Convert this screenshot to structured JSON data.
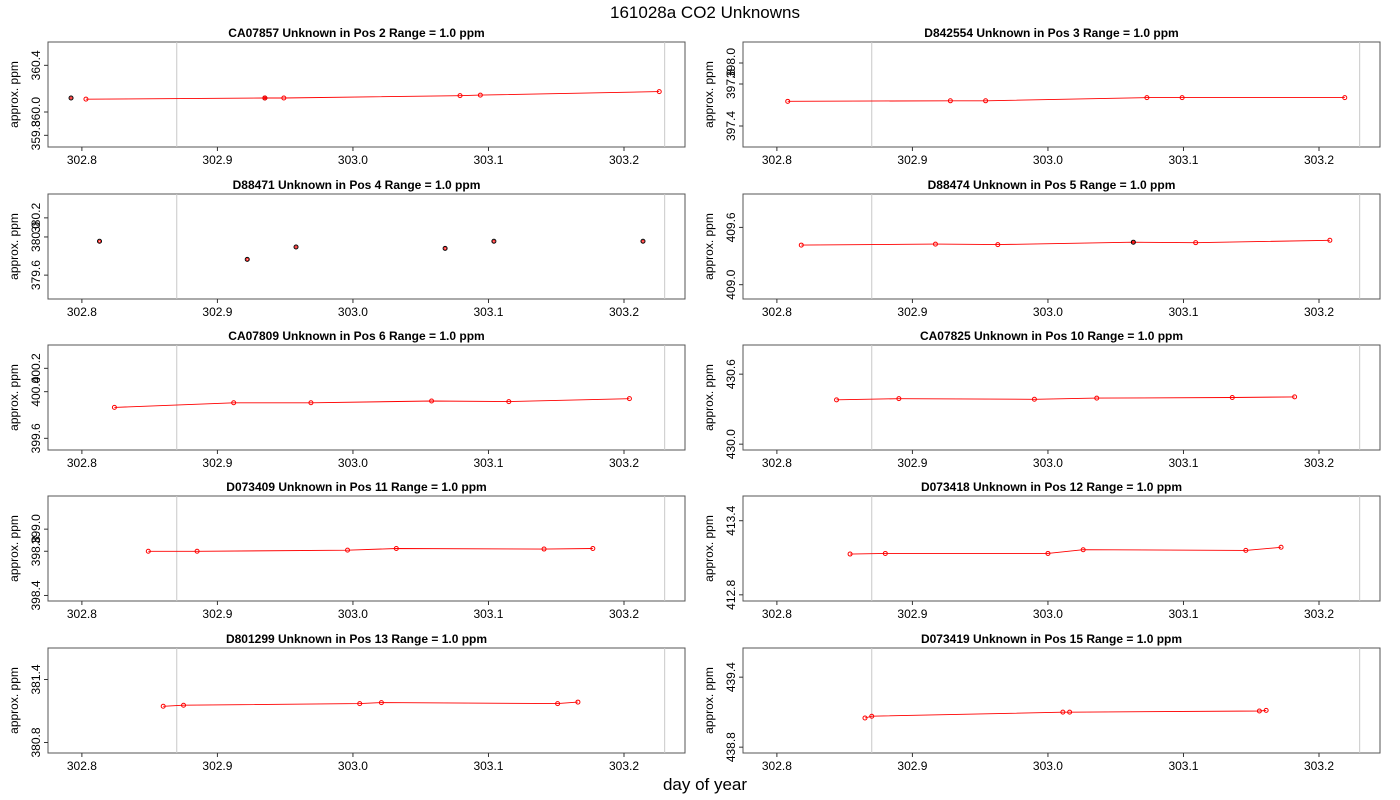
{
  "title": "161028a  CO2 Unknowns",
  "xlabel": "day of year",
  "ylabel": "approx. ppm",
  "colors": {
    "series": "#ff0000",
    "vline": "#c8c8c8",
    "frame": "#555555"
  },
  "chart_data": [
    {
      "type": "line",
      "title": "CA07857    Unknown in Pos 2         Range = 1.0 ppm",
      "x": [
        302.792,
        302.803,
        302.935,
        302.935,
        302.949,
        303.079,
        303.094,
        303.226
      ],
      "y": [
        360.12,
        360.11,
        360.12,
        360.12,
        360.12,
        360.14,
        360.145,
        360.175
      ],
      "lines": [
        1,
        7
      ],
      "black_points": [
        0,
        2
      ],
      "xlim": [
        302.775,
        303.245
      ],
      "ylim": [
        359.7,
        360.6
      ],
      "xticks": [
        "302.8",
        "302.9",
        "303.0",
        "303.1",
        "303.2"
      ],
      "yticks": [
        "359.8",
        "360.0",
        "360.4"
      ]
    },
    {
      "type": "line",
      "title": "D842554    Unknown in Pos 3         Range = 1.0 ppm",
      "x": [
        302.808,
        302.928,
        302.954,
        303.073,
        303.099,
        303.219
      ],
      "y": [
        397.635,
        397.64,
        397.64,
        397.67,
        397.67,
        397.67
      ],
      "lines": [
        0,
        5
      ],
      "black_points": [],
      "xlim": [
        302.775,
        303.245
      ],
      "ylim": [
        397.2,
        398.2
      ],
      "xticks": [
        "302.8",
        "302.9",
        "303.0",
        "303.1",
        "303.2"
      ],
      "yticks": [
        "397.4",
        "397.8",
        "398.0"
      ]
    },
    {
      "type": "scatter",
      "title": "D88471    Unknown in Pos 4         Range = 1.0 ppm",
      "x": [
        302.813,
        302.922,
        302.958,
        303.068,
        303.104,
        303.214
      ],
      "y": [
        379.955,
        379.765,
        379.895,
        379.88,
        379.955,
        379.955
      ],
      "lines": null,
      "black_points": [
        0,
        1,
        2,
        3,
        4,
        5
      ],
      "xlim": [
        302.775,
        303.245
      ],
      "ylim": [
        379.35,
        380.45
      ],
      "xticks": [
        "302.8",
        "302.9",
        "303.0",
        "303.1",
        "303.2"
      ],
      "yticks": [
        "379.6",
        "380.0",
        "380.2"
      ]
    },
    {
      "type": "line",
      "title": "D88474    Unknown in Pos 5         Range = 1.0 ppm",
      "x": [
        302.818,
        302.917,
        302.963,
        303.063,
        303.109,
        303.208
      ],
      "y": [
        409.415,
        409.425,
        409.42,
        409.445,
        409.44,
        409.465
      ],
      "lines": [
        0,
        5
      ],
      "black_points": [
        3
      ],
      "xlim": [
        302.775,
        303.245
      ],
      "ylim": [
        408.85,
        409.95
      ],
      "xticks": [
        "302.8",
        "302.9",
        "303.0",
        "303.1",
        "303.2"
      ],
      "yticks": [
        "409.0",
        "409.6"
      ]
    },
    {
      "type": "line",
      "title": "CA07809    Unknown in Pos 6         Range = 1.0 ppm",
      "x": [
        302.824,
        302.912,
        302.969,
        303.058,
        303.115,
        303.204
      ],
      "y": [
        399.865,
        399.905,
        399.905,
        399.92,
        399.915,
        399.94
      ],
      "lines": [
        0,
        5
      ],
      "black_points": [],
      "xlim": [
        302.775,
        303.245
      ],
      "ylim": [
        399.5,
        400.4
      ],
      "xticks": [
        "302.8",
        "302.9",
        "303.0",
        "303.1",
        "303.2"
      ],
      "yticks": [
        "399.6",
        "400.0",
        "400.2"
      ]
    },
    {
      "type": "line",
      "title": "CA07825    Unknown in Pos 10         Range = 1.0 ppm",
      "x": [
        302.844,
        302.89,
        302.99,
        303.036,
        303.136,
        303.182
      ],
      "y": [
        430.38,
        430.39,
        430.385,
        430.395,
        430.4,
        430.405
      ],
      "lines": [
        0,
        5
      ],
      "black_points": [],
      "xlim": [
        302.775,
        303.245
      ],
      "ylim": [
        429.95,
        430.85
      ],
      "xticks": [
        "302.8",
        "302.9",
        "303.0",
        "303.1",
        "303.2"
      ],
      "yticks": [
        "430.0",
        "430.6"
      ]
    },
    {
      "type": "line",
      "title": "D073409    Unknown in Pos 11         Range = 1.0 ppm",
      "x": [
        302.849,
        302.885,
        302.996,
        303.032,
        303.141,
        303.177
      ],
      "y": [
        398.8,
        398.8,
        398.81,
        398.825,
        398.82,
        398.825
      ],
      "lines": [
        0,
        5
      ],
      "black_points": [],
      "xlim": [
        302.775,
        303.245
      ],
      "ylim": [
        398.35,
        399.3
      ],
      "xticks": [
        "302.8",
        "302.9",
        "303.0",
        "303.1",
        "303.2"
      ],
      "yticks": [
        "398.4",
        "398.8",
        "399.0"
      ]
    },
    {
      "type": "line",
      "title": "D073418    Unknown in Pos 12         Range = 1.0 ppm",
      "x": [
        302.854,
        302.88,
        303.0,
        303.026,
        303.146,
        303.172
      ],
      "y": [
        413.13,
        413.135,
        413.135,
        413.165,
        413.16,
        413.185
      ],
      "lines": [
        0,
        5
      ],
      "black_points": [],
      "xlim": [
        302.775,
        303.245
      ],
      "ylim": [
        412.75,
        413.6
      ],
      "xticks": [
        "302.8",
        "302.9",
        "303.0",
        "303.1",
        "303.2"
      ],
      "yticks": [
        "412.8",
        "413.4"
      ]
    },
    {
      "type": "line",
      "title": "D801299    Unknown in Pos 13         Range = 1.0 ppm",
      "x": [
        302.86,
        302.875,
        303.005,
        303.021,
        303.151,
        303.166
      ],
      "y": [
        381.145,
        381.155,
        381.17,
        381.18,
        381.17,
        381.185
      ],
      "lines": [
        0,
        5
      ],
      "black_points": [],
      "xlim": [
        302.775,
        303.245
      ],
      "ylim": [
        380.7,
        381.7
      ],
      "xticks": [
        "302.8",
        "302.9",
        "303.0",
        "303.1",
        "303.2"
      ],
      "yticks": [
        "380.8",
        "381.4"
      ]
    },
    {
      "type": "line",
      "title": "D073419    Unknown in Pos 15         Range = 1.0 ppm",
      "x": [
        302.865,
        302.87,
        303.011,
        303.016,
        303.156,
        303.161
      ],
      "y": [
        439.05,
        439.065,
        439.1,
        439.1,
        439.11,
        439.115
      ],
      "lines": [
        0,
        5
      ],
      "black_points": [],
      "xlim": [
        302.775,
        303.245
      ],
      "ylim": [
        438.75,
        439.65
      ],
      "xticks": [
        "302.8",
        "302.9",
        "303.0",
        "303.1",
        "303.2"
      ],
      "yticks": [
        "438.8",
        "439.4"
      ]
    }
  ],
  "vlines": [
    302.87,
    303.23
  ],
  "grid": false,
  "legend": "none"
}
